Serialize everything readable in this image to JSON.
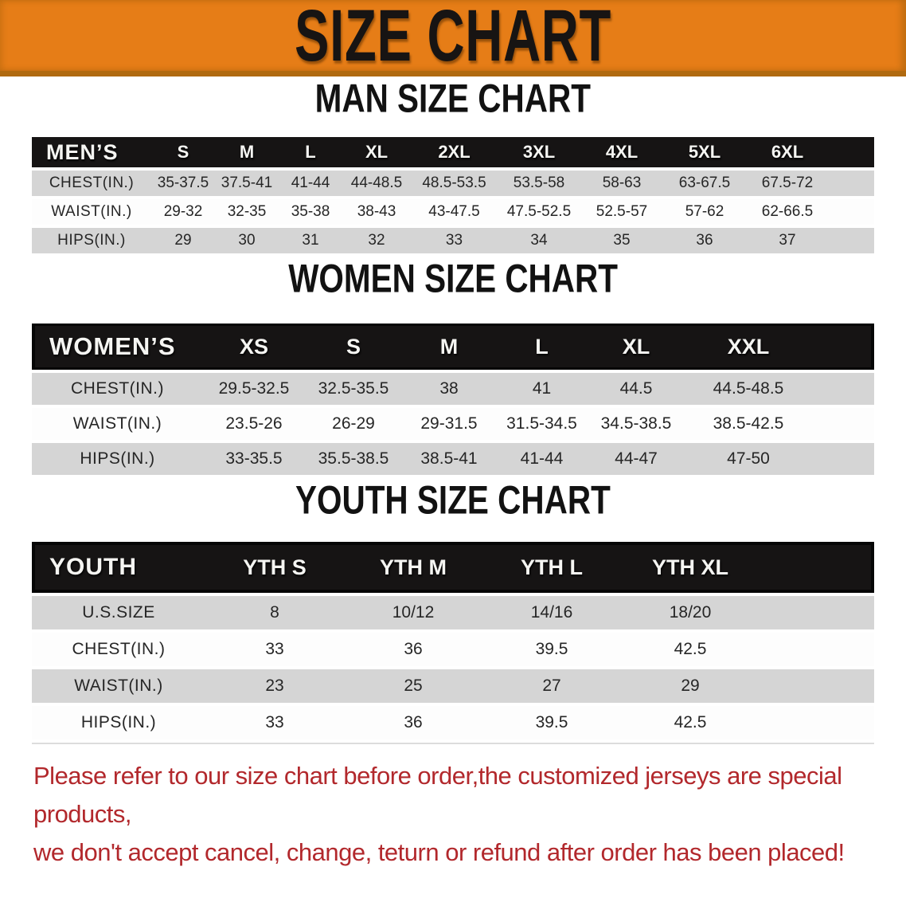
{
  "banner": {
    "title": "SIZE CHART",
    "bg_color": "#e67d17",
    "edge_color": "#b06a10",
    "text_color": "#171413"
  },
  "colors": {
    "table_header_bar": "#161414",
    "row_gray": "#d5d5d5",
    "row_white": "#fdfdfd",
    "footer_text": "#b2282c"
  },
  "sections": [
    {
      "heading": "MAN SIZE CHART",
      "table": {
        "group_label": "MEN’S",
        "sizes": [
          "S",
          "M",
          "L",
          "XL",
          "2XL",
          "3XL",
          "4XL",
          "5XL",
          "6XL"
        ],
        "rows": [
          {
            "label": "CHEST(IN.)",
            "values": [
              "35-37.5",
              "37.5-41",
              "41-44",
              "44-48.5",
              "48.5-53.5",
              "53.5-58",
              "58-63",
              "63-67.5",
              "67.5-72"
            ]
          },
          {
            "label": "WAIST(IN.)",
            "values": [
              "29-32",
              "32-35",
              "35-38",
              "38-43",
              "43-47.5",
              "47.5-52.5",
              "52.5-57",
              "57-62",
              "62-66.5"
            ]
          },
          {
            "label": "HIPS(IN.)",
            "values": [
              "29",
              "30",
              "31",
              "32",
              "33",
              "34",
              "35",
              "36",
              "37"
            ]
          }
        ]
      }
    },
    {
      "heading": "WOMEN SIZE CHART",
      "table": {
        "group_label": "WOMEN’S",
        "sizes": [
          "XS",
          "S",
          "M",
          "L",
          "XL",
          "XXL"
        ],
        "rows": [
          {
            "label": "CHEST(IN.)",
            "values": [
              "29.5-32.5",
              "32.5-35.5",
              "38",
              "41",
              "44.5",
              "44.5-48.5"
            ]
          },
          {
            "label": "WAIST(IN.)",
            "values": [
              "23.5-26",
              "26-29",
              "29-31.5",
              "31.5-34.5",
              "34.5-38.5",
              "38.5-42.5"
            ]
          },
          {
            "label": "HIPS(IN.)",
            "values": [
              "33-35.5",
              "35.5-38.5",
              "38.5-41",
              "41-44",
              "44-47",
              "47-50"
            ]
          }
        ]
      }
    },
    {
      "heading": "YOUTH SIZE CHART",
      "table": {
        "group_label": "YOUTH",
        "sizes": [
          "YTH S",
          "YTH M",
          "YTH L",
          "YTH XL"
        ],
        "rows": [
          {
            "label": "U.S.SIZE",
            "values": [
              "8",
              "10/12",
              "14/16",
              "18/20"
            ]
          },
          {
            "label": "CHEST(IN.)",
            "values": [
              "33",
              "36",
              "39.5",
              "42.5"
            ]
          },
          {
            "label": "WAIST(IN.)",
            "values": [
              "23",
              "25",
              "27",
              "29"
            ]
          },
          {
            "label": "HIPS(IN.)",
            "values": [
              "33",
              "36",
              "39.5",
              "42.5"
            ]
          }
        ]
      }
    }
  ],
  "footer": {
    "line1": "Please refer to our size chart before order,the customized jerseys are special products,",
    "line2": "we don't accept cancel, change, teturn or refund after order has been placed!"
  }
}
